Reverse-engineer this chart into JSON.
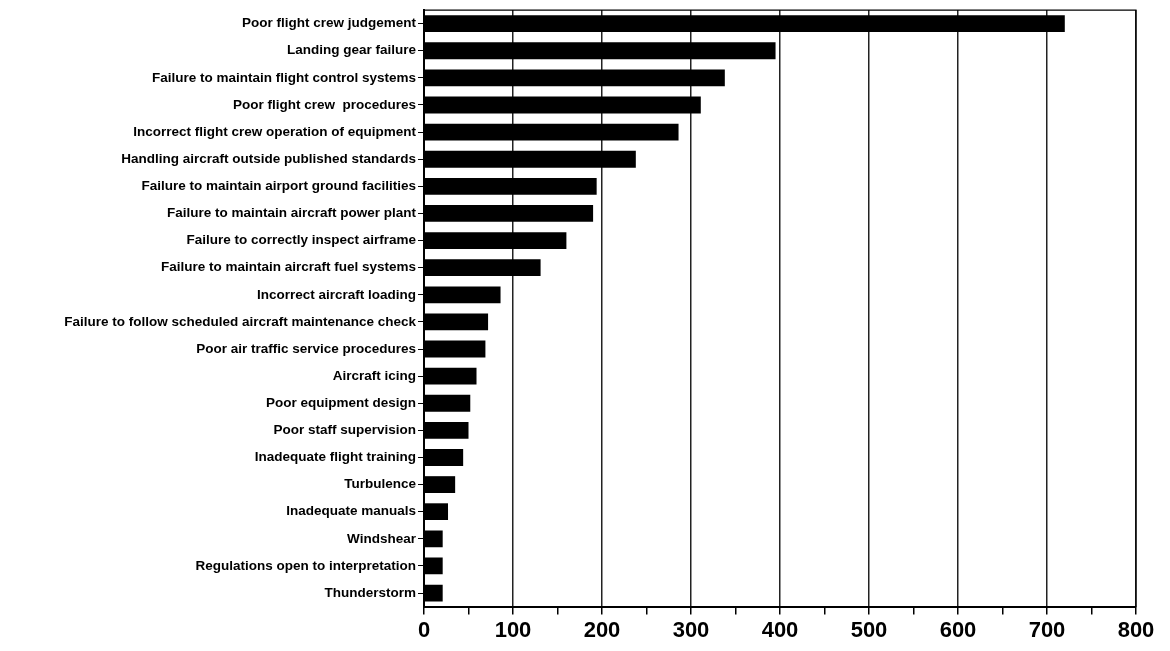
{
  "chart_data": {
    "type": "bar",
    "orientation": "horizontal",
    "categories": [
      "Poor flight crew judgement",
      "Landing gear failure",
      "Failure to maintain flight control systems",
      "Poor flight crew  procedures",
      "Incorrect flight crew operation of equipment",
      "Handling aircraft outside published standards",
      "Failure to maintain airport ground facilities",
      "Failure to maintain aircraft power plant",
      "Failure to correctly inspect airframe",
      "Failure to maintain aircraft fuel systems",
      "Incorrect aircraft loading",
      "Failure to follow scheduled aircraft maintenance check",
      "Poor air traffic service procedures",
      "Aircraft icing",
      "Poor equipment design",
      "Poor staff supervision",
      "Inadequate flight training",
      "Turbulence",
      "Inadequate manuals",
      "Windshear",
      "Regulations open to interpretation",
      "Thunderstorm"
    ],
    "values": [
      720,
      395,
      338,
      311,
      286,
      238,
      194,
      190,
      160,
      131,
      86,
      72,
      69,
      59,
      52,
      50,
      44,
      35,
      27,
      21,
      21,
      21
    ],
    "color": "#000000",
    "xlim": [
      0,
      800
    ],
    "xticks": [
      0,
      {
        "value": 50,
        "label": null
      },
      100,
      {
        "value": 150,
        "label": null
      },
      200,
      {
        "value": 250,
        "label": null
      },
      300,
      {
        "value": 350,
        "label": null
      },
      400,
      {
        "value": 450,
        "label": null
      },
      500,
      {
        "value": 550,
        "label": null
      },
      600,
      {
        "value": 650,
        "label": null
      },
      700,
      {
        "value": 750,
        "label": null
      },
      800
    ],
    "grid": "x",
    "legend": false
  }
}
